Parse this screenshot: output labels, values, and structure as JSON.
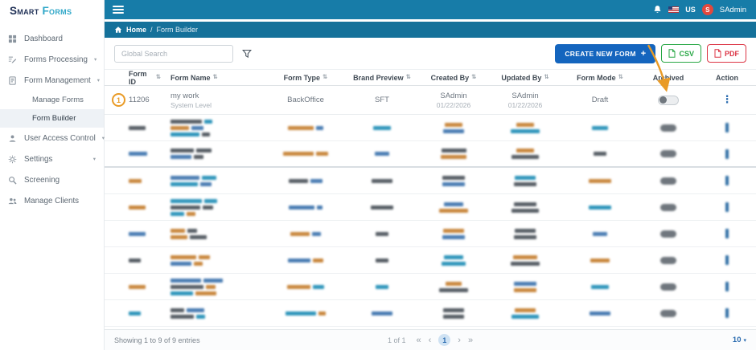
{
  "brand": {
    "name_primary": "Smart",
    "name_secondary": "Forms"
  },
  "topbar": {
    "username": "SAdmin",
    "locale": "US",
    "avatar_letter": "S"
  },
  "breadcrumb": {
    "home": "Home",
    "separator": "/",
    "current": "Form Builder"
  },
  "sidebar": {
    "items": [
      {
        "label": "Dashboard"
      },
      {
        "label": "Forms Processing",
        "expandable": true
      },
      {
        "label": "Form Management",
        "expandable": true,
        "expanded": true,
        "children": [
          {
            "label": "Manage Forms"
          },
          {
            "label": "Form Builder",
            "active": true
          }
        ]
      },
      {
        "label": "User Access Control",
        "expandable": true
      },
      {
        "label": "Settings",
        "expandable": true
      },
      {
        "label": "Screening"
      },
      {
        "label": "Manage Clients"
      }
    ]
  },
  "toolbar": {
    "search_placeholder": "Global Search",
    "create_button": "CREATE NEW FORM",
    "create_plus": "+",
    "csv_button": "CSV",
    "pdf_button": "PDF"
  },
  "table": {
    "columns": [
      {
        "key": "form-id",
        "label": "Form ID",
        "sortable": true
      },
      {
        "key": "form-name",
        "label": "Form Name",
        "sortable": true
      },
      {
        "key": "form-type",
        "label": "Form Type",
        "sortable": true
      },
      {
        "key": "brand-preview",
        "label": "Brand Preview",
        "sortable": true
      },
      {
        "key": "created-by",
        "label": "Created By",
        "sortable": true
      },
      {
        "key": "updated-by",
        "label": "Updated By",
        "sortable": true
      },
      {
        "key": "form-mode",
        "label": "Form Mode",
        "sortable": true
      },
      {
        "key": "archived",
        "label": "Archived",
        "sortable": false
      },
      {
        "key": "action",
        "label": "Action",
        "sortable": false
      }
    ],
    "first_row": {
      "form_id": "11206",
      "form_name": "my work",
      "form_level": "System Level",
      "form_type": "BackOffice",
      "brand_preview": "SFT",
      "created_by": "SAdmin",
      "created_date": "01/22/2026",
      "updated_by": "SAdmin",
      "updated_date": "01/22/2026",
      "form_mode": "Draft",
      "archived_state": "off"
    },
    "redacted": {
      "row_count": 8,
      "block_colors": [
        "#c9883f",
        "#4a7db3",
        "#585f66",
        "#2f96bb"
      ]
    }
  },
  "annotations": {
    "marker_label": "1"
  },
  "footer": {
    "summary": "Showing 1 to 9 of 9 entries",
    "page_info": "1 of 1",
    "current_page": "1",
    "page_size": "10"
  },
  "icons": {
    "sort": "⇅",
    "action_menu": "⋮",
    "chevron_down": "▾",
    "pagination_first": "«",
    "pagination_prev": "‹",
    "pagination_next": "›",
    "pagination_last": "»",
    "dropdown_caret": "▾"
  },
  "colors": {
    "topbar": "#177CA8",
    "breadcrumb": "#15719A",
    "accent_blue": "#1465BE",
    "csv_green": "#28A745",
    "pdf_red": "#DC3545",
    "annotation_orange": "#E99B27",
    "logo_navy": "#1E2F55",
    "logo_teal": "#2FA7C8"
  }
}
